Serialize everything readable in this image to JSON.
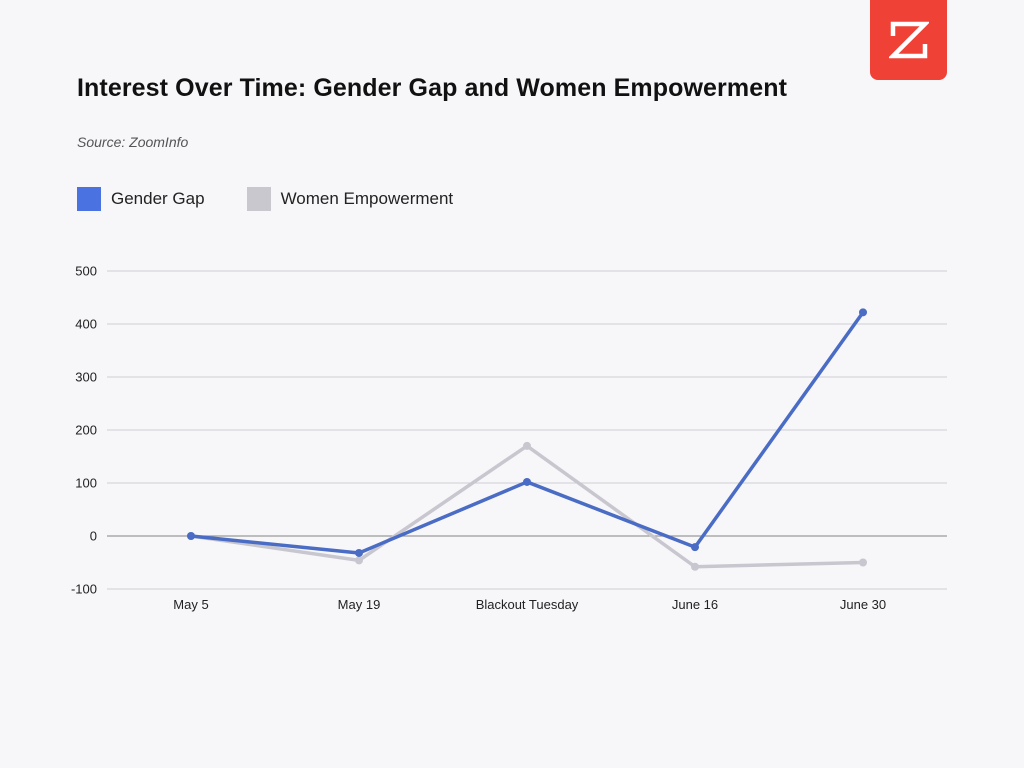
{
  "brand": {
    "logo_icon": "zoominfo-z-logo-icon",
    "logo_color": "#ef4136"
  },
  "header": {
    "title": "Interest Over Time: Gender Gap and Women Empowerment",
    "source": "Source: ZoomInfo"
  },
  "chart_data": {
    "type": "line",
    "title": "Interest Over Time: Gender Gap and Women Empowerment",
    "subtitle": "Source: ZoomInfo",
    "xlabel": "",
    "ylabel": "",
    "categories": [
      "May 5",
      "May 19",
      "Blackout Tuesday",
      "June 16",
      "June 30"
    ],
    "ylim": [
      -100,
      500
    ],
    "yticks": [
      500,
      400,
      300,
      200,
      100,
      0,
      -100
    ],
    "grid": true,
    "legend_position": "top-left",
    "series": [
      {
        "name": "Gender Gap",
        "color": "#4a6cc4",
        "legend_color": "#4a72e0",
        "values": [
          0,
          -32,
          102,
          -21,
          422
        ]
      },
      {
        "name": "Women Empowerment",
        "color": "#c8c7cf",
        "legend_color": "#c9c8cf",
        "values": [
          0,
          -46,
          170,
          -58,
          -50
        ]
      }
    ]
  }
}
